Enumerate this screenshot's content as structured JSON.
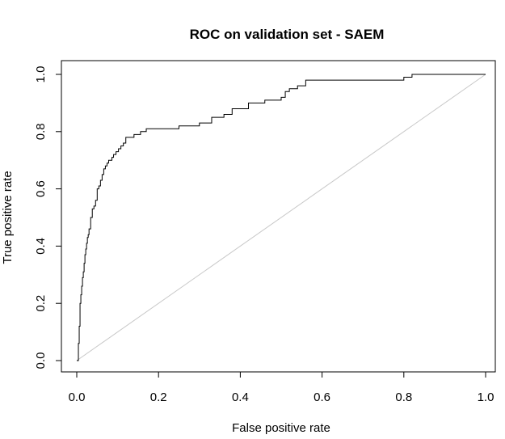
{
  "chart_data": {
    "type": "line",
    "title": "ROC on validation set - SAEM",
    "xlabel": "False positive rate",
    "ylabel": "True positive rate",
    "xlim": [
      0,
      1
    ],
    "ylim": [
      0,
      1
    ],
    "xticks": [
      "0.0",
      "0.2",
      "0.4",
      "0.6",
      "0.8",
      "1.0"
    ],
    "yticks": [
      "0.0",
      "0.2",
      "0.4",
      "0.6",
      "0.8",
      "1.0"
    ],
    "grid": false,
    "legend": "none",
    "series": [
      {
        "color": "#000000",
        "x": [
          0.0,
          0.004,
          0.006,
          0.008,
          0.01,
          0.012,
          0.014,
          0.016,
          0.018,
          0.02,
          0.022,
          0.024,
          0.026,
          0.028,
          0.03,
          0.034,
          0.038,
          0.042,
          0.046,
          0.05,
          0.054,
          0.058,
          0.062,
          0.066,
          0.07,
          0.074,
          0.078,
          0.082,
          0.086,
          0.09,
          0.096,
          0.102,
          0.108,
          0.114,
          0.12,
          0.126,
          0.132,
          0.14,
          0.148,
          0.156,
          0.162,
          0.17,
          0.185,
          0.195,
          0.25,
          0.3,
          0.33,
          0.36,
          0.38,
          0.42,
          0.46,
          0.5,
          0.51,
          0.52,
          0.54,
          0.56,
          0.8,
          0.82,
          1.0
        ],
        "y": [
          0.0,
          0.06,
          0.12,
          0.2,
          0.23,
          0.26,
          0.29,
          0.31,
          0.34,
          0.37,
          0.39,
          0.41,
          0.43,
          0.44,
          0.46,
          0.5,
          0.53,
          0.54,
          0.56,
          0.6,
          0.61,
          0.63,
          0.65,
          0.67,
          0.68,
          0.69,
          0.7,
          0.7,
          0.71,
          0.72,
          0.73,
          0.74,
          0.75,
          0.76,
          0.78,
          0.78,
          0.78,
          0.79,
          0.79,
          0.8,
          0.8,
          0.81,
          0.81,
          0.81,
          0.82,
          0.83,
          0.85,
          0.86,
          0.88,
          0.9,
          0.91,
          0.92,
          0.94,
          0.95,
          0.96,
          0.98,
          0.99,
          1.0,
          1.0
        ]
      },
      {
        "color": "#c8c8c8",
        "x": [
          0,
          1
        ],
        "y": [
          0,
          1
        ]
      }
    ]
  }
}
